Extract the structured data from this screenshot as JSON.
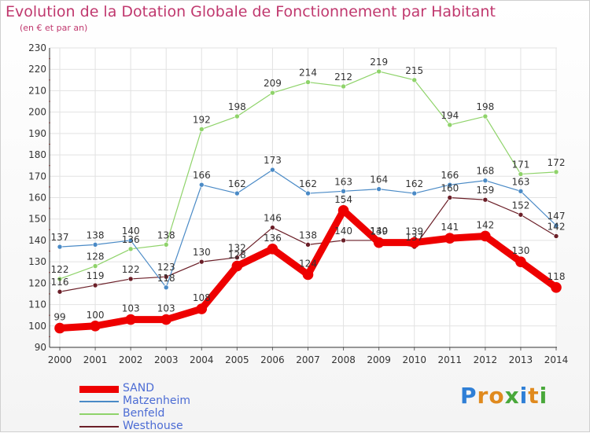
{
  "title": "Evolution de la Dotation Globale de Fonctionnement par Habitant",
  "subtitle": "(en € et par an)",
  "logo": {
    "letters": [
      {
        "ch": "P",
        "color": "#2f7fd6"
      },
      {
        "ch": "r",
        "color": "#e08a1e"
      },
      {
        "ch": "o",
        "color": "#e08a1e"
      },
      {
        "ch": "x",
        "color": "#49a83a"
      },
      {
        "ch": "i",
        "color": "#2f7fd6"
      },
      {
        "ch": "t",
        "color": "#e08a1e"
      },
      {
        "ch": "i",
        "color": "#49a83a"
      }
    ]
  },
  "chart_data": {
    "type": "line",
    "title": "Evolution de la Dotation Globale de Fonctionnement par Habitant",
    "subtitle": "(en € et par an)",
    "x": [
      "2000",
      "2001",
      "2002",
      "2003",
      "2004",
      "2005",
      "2006",
      "2007",
      "2008",
      "2009",
      "2010",
      "2011",
      "2012",
      "2013",
      "2014"
    ],
    "ylim": [
      90,
      230
    ],
    "yticks": [
      90,
      100,
      110,
      120,
      130,
      140,
      150,
      160,
      170,
      180,
      190,
      200,
      210,
      220,
      230
    ],
    "grid": true,
    "legend_position": "bottom-left",
    "series": [
      {
        "name": "Westhouse",
        "color": "#6b1f28",
        "values": [
          116,
          119,
          122,
          123,
          130,
          132,
          146,
          138,
          140,
          140,
          137,
          160,
          159,
          152,
          142
        ]
      },
      {
        "name": "Benfeld",
        "color": "#8fd36a",
        "values": [
          122,
          128,
          136,
          138,
          192,
          198,
          209,
          214,
          212,
          219,
          215,
          194,
          198,
          171,
          172
        ]
      },
      {
        "name": "Matzenheim",
        "color": "#4a8ac6",
        "values": [
          137,
          138,
          140,
          118,
          166,
          162,
          173,
          162,
          163,
          164,
          162,
          166,
          168,
          163,
          147
        ]
      },
      {
        "name": "SAND",
        "color": "#ee0000",
        "values": [
          99,
          100,
          103,
          103,
          108,
          128,
          136,
          124,
          154,
          139,
          139,
          141,
          142,
          130,
          118
        ]
      }
    ]
  }
}
